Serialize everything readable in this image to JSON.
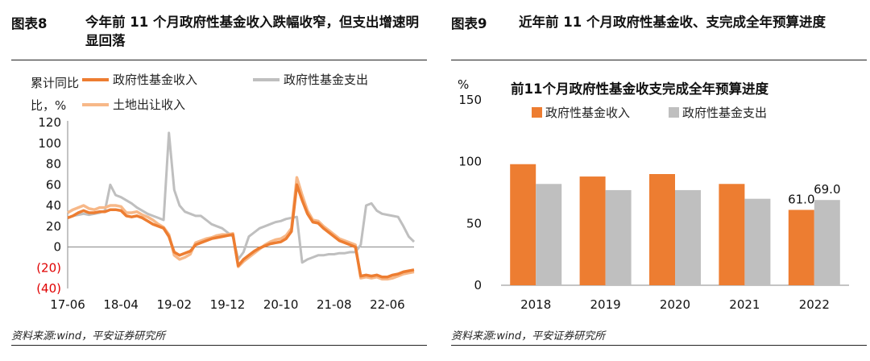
{
  "left": {
    "fig_label": "图表8",
    "fig_title": "今年前 11 个月政府性基金收入跌幅收窄，但支出增速明显回落",
    "source": "资料来源:wind，平安证券研究所"
  },
  "right": {
    "fig_label": "图表9",
    "fig_title": "近年前 11 个月政府性基金收、支完成全年预算进度",
    "source": "资料来源:wind，平安证券研究所"
  },
  "colors": {
    "orange": "#ED7D31",
    "gray": "#BFBFBF",
    "light_orange": "#F7B888",
    "negative_tick": "#E00000"
  },
  "chart_data": [
    {
      "type": "line",
      "ylabel": "累计同比，%",
      "ylim": [
        -40,
        120
      ],
      "y_ticks": [
        120,
        100,
        80,
        60,
        40,
        20,
        0,
        -20,
        -40
      ],
      "y_tick_labels": [
        "120",
        "100",
        "80",
        "60",
        "40",
        "20",
        "0",
        "(20)",
        "(40)"
      ],
      "x_tick_labels": [
        "17-06",
        "18-04",
        "19-02",
        "19-12",
        "20-10",
        "21-08",
        "22-06"
      ],
      "x_ticks": [
        "2017-06",
        "2018-04",
        "2019-02",
        "2019-12",
        "2020-10",
        "2021-08",
        "2022-06"
      ],
      "x": [
        "2017-06",
        "2017-07",
        "2017-08",
        "2017-09",
        "2017-10",
        "2017-11",
        "2017-12",
        "2018-01",
        "2018-02",
        "2018-03",
        "2018-04",
        "2018-05",
        "2018-06",
        "2018-07",
        "2018-08",
        "2018-09",
        "2018-10",
        "2018-11",
        "2018-12",
        "2019-01",
        "2019-02",
        "2019-03",
        "2019-04",
        "2019-05",
        "2019-06",
        "2019-07",
        "2019-08",
        "2019-09",
        "2019-10",
        "2019-11",
        "2019-12",
        "2020-01",
        "2020-02",
        "2020-03",
        "2020-04",
        "2020-05",
        "2020-06",
        "2020-07",
        "2020-08",
        "2020-09",
        "2020-10",
        "2020-11",
        "2020-12",
        "2021-01",
        "2021-02",
        "2021-03",
        "2021-04",
        "2021-05",
        "2021-06",
        "2021-07",
        "2021-08",
        "2021-09",
        "2021-10",
        "2021-11",
        "2021-12",
        "2022-01",
        "2022-02",
        "2022-03",
        "2022-04",
        "2022-05",
        "2022-06",
        "2022-07",
        "2022-08",
        "2022-09",
        "2022-10",
        "2022-11"
      ],
      "series": [
        {
          "name": "政府性基金收入",
          "color": "#ED7D31",
          "values": [
            28,
            30,
            33,
            35,
            33,
            33,
            34,
            34,
            36,
            36,
            35,
            30,
            29,
            30,
            28,
            25,
            22,
            20,
            18,
            10,
            -5,
            -8,
            -6,
            -4,
            2,
            4,
            6,
            8,
            9,
            10,
            11,
            12,
            -18,
            -12,
            -8,
            -4,
            -1,
            1,
            3,
            4,
            5,
            8,
            15,
            60,
            45,
            32,
            24,
            23,
            18,
            14,
            10,
            6,
            4,
            2,
            0,
            -28,
            -27,
            -28,
            -27,
            -29,
            -29,
            -27,
            -26,
            -24,
            -23,
            -22
          ]
        },
        {
          "name": "政府性基金支出",
          "color": "#BFBFBF",
          "values": [
            28,
            30,
            31,
            32,
            31,
            32,
            33,
            35,
            60,
            50,
            48,
            45,
            42,
            38,
            35,
            32,
            30,
            28,
            26,
            110,
            55,
            40,
            34,
            32,
            30,
            30,
            26,
            22,
            20,
            18,
            14,
            10,
            -12,
            -5,
            10,
            14,
            18,
            20,
            22,
            24,
            25,
            27,
            28,
            29,
            -15,
            -12,
            -10,
            -8,
            -8,
            -7,
            -7,
            -6,
            -6,
            -5,
            -5,
            2,
            40,
            42,
            35,
            32,
            31,
            30,
            29,
            20,
            10,
            5
          ]
        },
        {
          "name": "土地出让收入",
          "color": "#F7B888",
          "values": [
            33,
            36,
            38,
            40,
            37,
            36,
            38,
            38,
            40,
            40,
            39,
            33,
            33,
            34,
            31,
            29,
            26,
            22,
            19,
            12,
            -8,
            -12,
            -10,
            -7,
            4,
            6,
            8,
            9,
            11,
            12,
            12,
            13,
            -19,
            -14,
            -10,
            -6,
            -2,
            2,
            5,
            7,
            8,
            11,
            18,
            67,
            50,
            35,
            26,
            25,
            20,
            16,
            12,
            8,
            6,
            4,
            2,
            -30,
            -29,
            -30,
            -29,
            -31,
            -31,
            -30,
            -28,
            -26,
            -25,
            -24
          ]
        }
      ]
    },
    {
      "type": "bar",
      "title": "前11个月政府性基金收支完成全年预算进度",
      "ylabel": "%",
      "ylim": [
        0,
        150
      ],
      "y_ticks": [
        0,
        50,
        100,
        150
      ],
      "categories": [
        "2018",
        "2019",
        "2020",
        "2021",
        "2022"
      ],
      "series": [
        {
          "name": "政府性基金收入",
          "color": "#ED7D31",
          "values": [
            98,
            88,
            90,
            82,
            61.0
          ]
        },
        {
          "name": "政府性基金支出",
          "color": "#BFBFBF",
          "values": [
            82,
            77,
            77,
            70,
            69.0
          ]
        }
      ],
      "data_labels": [
        {
          "series": 0,
          "category": "2022",
          "text": "61.0"
        },
        {
          "series": 1,
          "category": "2022",
          "text": "69.0"
        }
      ]
    }
  ]
}
